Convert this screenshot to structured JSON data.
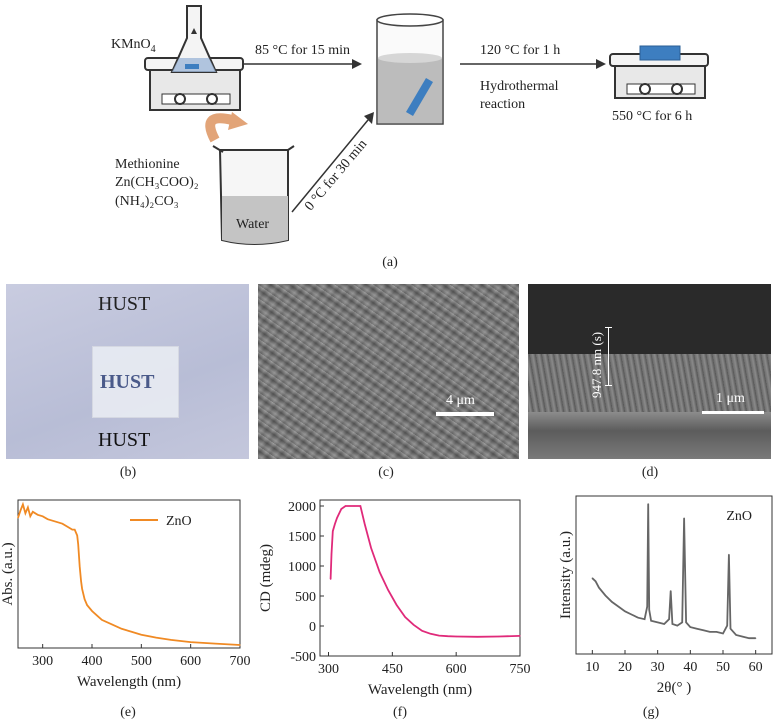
{
  "scheme": {
    "reagent_top": "KMnO",
    "reagent_top_sub": "4",
    "step1": "85 °C for 15 min",
    "step2_line1": "120 °C for 1 h",
    "step2_line2": "Hydrothermal",
    "step2_line3": "reaction",
    "step3": "550 °C for 6 h",
    "step_diag": "0 °C for 30 min",
    "reagents": {
      "line1": "Methionine",
      "line2": "Zn(CH₃COO)₂",
      "line3": "(NH₄)₂CO₃"
    },
    "beaker_label": "Water",
    "caption": "(a)"
  },
  "photos": {
    "b": {
      "caption": "(b)",
      "text_top": "HUST",
      "text_mid": "HUST",
      "text_bottom": "HUST"
    },
    "c": {
      "caption": "(c)",
      "scalebar": "4 μm"
    },
    "d": {
      "caption": "(d)",
      "scalebar": "1 μm",
      "thickness": "947.8 nm (s)"
    }
  },
  "chart_data": [
    {
      "id": "e",
      "type": "line",
      "caption": "(e)",
      "xlabel": "Wavelength (nm)",
      "ylabel": "Abs. (a.u.)",
      "xlim": [
        250,
        700
      ],
      "ylim": [
        0,
        1
      ],
      "xticks": [
        300,
        400,
        500,
        600,
        700
      ],
      "yticks": [],
      "legend": "top-right",
      "series": [
        {
          "name": "ZnO",
          "color": "#f08a24",
          "x": [
            250,
            255,
            260,
            265,
            270,
            275,
            280,
            290,
            300,
            310,
            320,
            330,
            340,
            350,
            360,
            365,
            370,
            372,
            375,
            378,
            380,
            385,
            390,
            400,
            410,
            420,
            440,
            460,
            480,
            500,
            530,
            560,
            600,
            650,
            700
          ],
          "y": [
            0.88,
            0.93,
            0.97,
            0.91,
            0.95,
            0.89,
            0.92,
            0.9,
            0.89,
            0.87,
            0.86,
            0.85,
            0.84,
            0.82,
            0.8,
            0.8,
            0.76,
            0.7,
            0.55,
            0.45,
            0.4,
            0.33,
            0.29,
            0.25,
            0.22,
            0.19,
            0.16,
            0.13,
            0.11,
            0.09,
            0.07,
            0.055,
            0.04,
            0.03,
            0.02
          ]
        }
      ]
    },
    {
      "id": "f",
      "type": "line",
      "caption": "(f)",
      "xlabel": "Wavelength (nm)",
      "ylabel": "CD (mdeg)",
      "xlim": [
        280,
        750
      ],
      "ylim": [
        -500,
        2100
      ],
      "xticks": [
        300,
        450,
        600,
        750
      ],
      "yticks": [
        -500,
        0,
        500,
        1000,
        1500,
        2000
      ],
      "series": [
        {
          "color": "#e02a7a",
          "x": [
            305,
            307,
            310,
            315,
            320,
            330,
            340,
            360,
            375,
            385,
            400,
            420,
            440,
            460,
            480,
            500,
            520,
            540,
            560,
            580,
            600,
            650,
            700,
            750
          ],
          "y": [
            780,
            1200,
            1580,
            1700,
            1800,
            1950,
            2000,
            2000,
            2000,
            1700,
            1300,
            900,
            600,
            350,
            150,
            20,
            -80,
            -130,
            -160,
            -170,
            -175,
            -180,
            -175,
            -165
          ]
        }
      ]
    },
    {
      "id": "g",
      "type": "line",
      "caption": "(g)",
      "xlabel": "2θ(° )",
      "ylabel": "Intensity (a.u.)",
      "xlim": [
        5,
        65
      ],
      "ylim": [
        0,
        1
      ],
      "xticks": [
        10,
        20,
        30,
        40,
        50,
        60
      ],
      "yticks": [],
      "annotation": "ZnO",
      "series": [
        {
          "color": "#666666",
          "x": [
            10,
            11,
            12,
            14,
            16,
            18,
            20,
            22,
            24,
            26,
            26.8,
            27.1,
            27.4,
            28,
            30,
            32,
            33.5,
            34.0,
            34.5,
            36,
            37.5,
            38.1,
            38.7,
            40,
            42,
            44,
            46,
            48,
            50,
            51.3,
            51.8,
            52.3,
            54,
            56,
            58,
            60
          ],
          "y": [
            0.48,
            0.46,
            0.42,
            0.37,
            0.33,
            0.3,
            0.27,
            0.25,
            0.23,
            0.22,
            0.3,
            0.95,
            0.28,
            0.21,
            0.2,
            0.19,
            0.22,
            0.4,
            0.19,
            0.18,
            0.2,
            0.86,
            0.2,
            0.17,
            0.16,
            0.15,
            0.14,
            0.14,
            0.13,
            0.18,
            0.63,
            0.16,
            0.12,
            0.11,
            0.1,
            0.1
          ]
        }
      ]
    }
  ]
}
